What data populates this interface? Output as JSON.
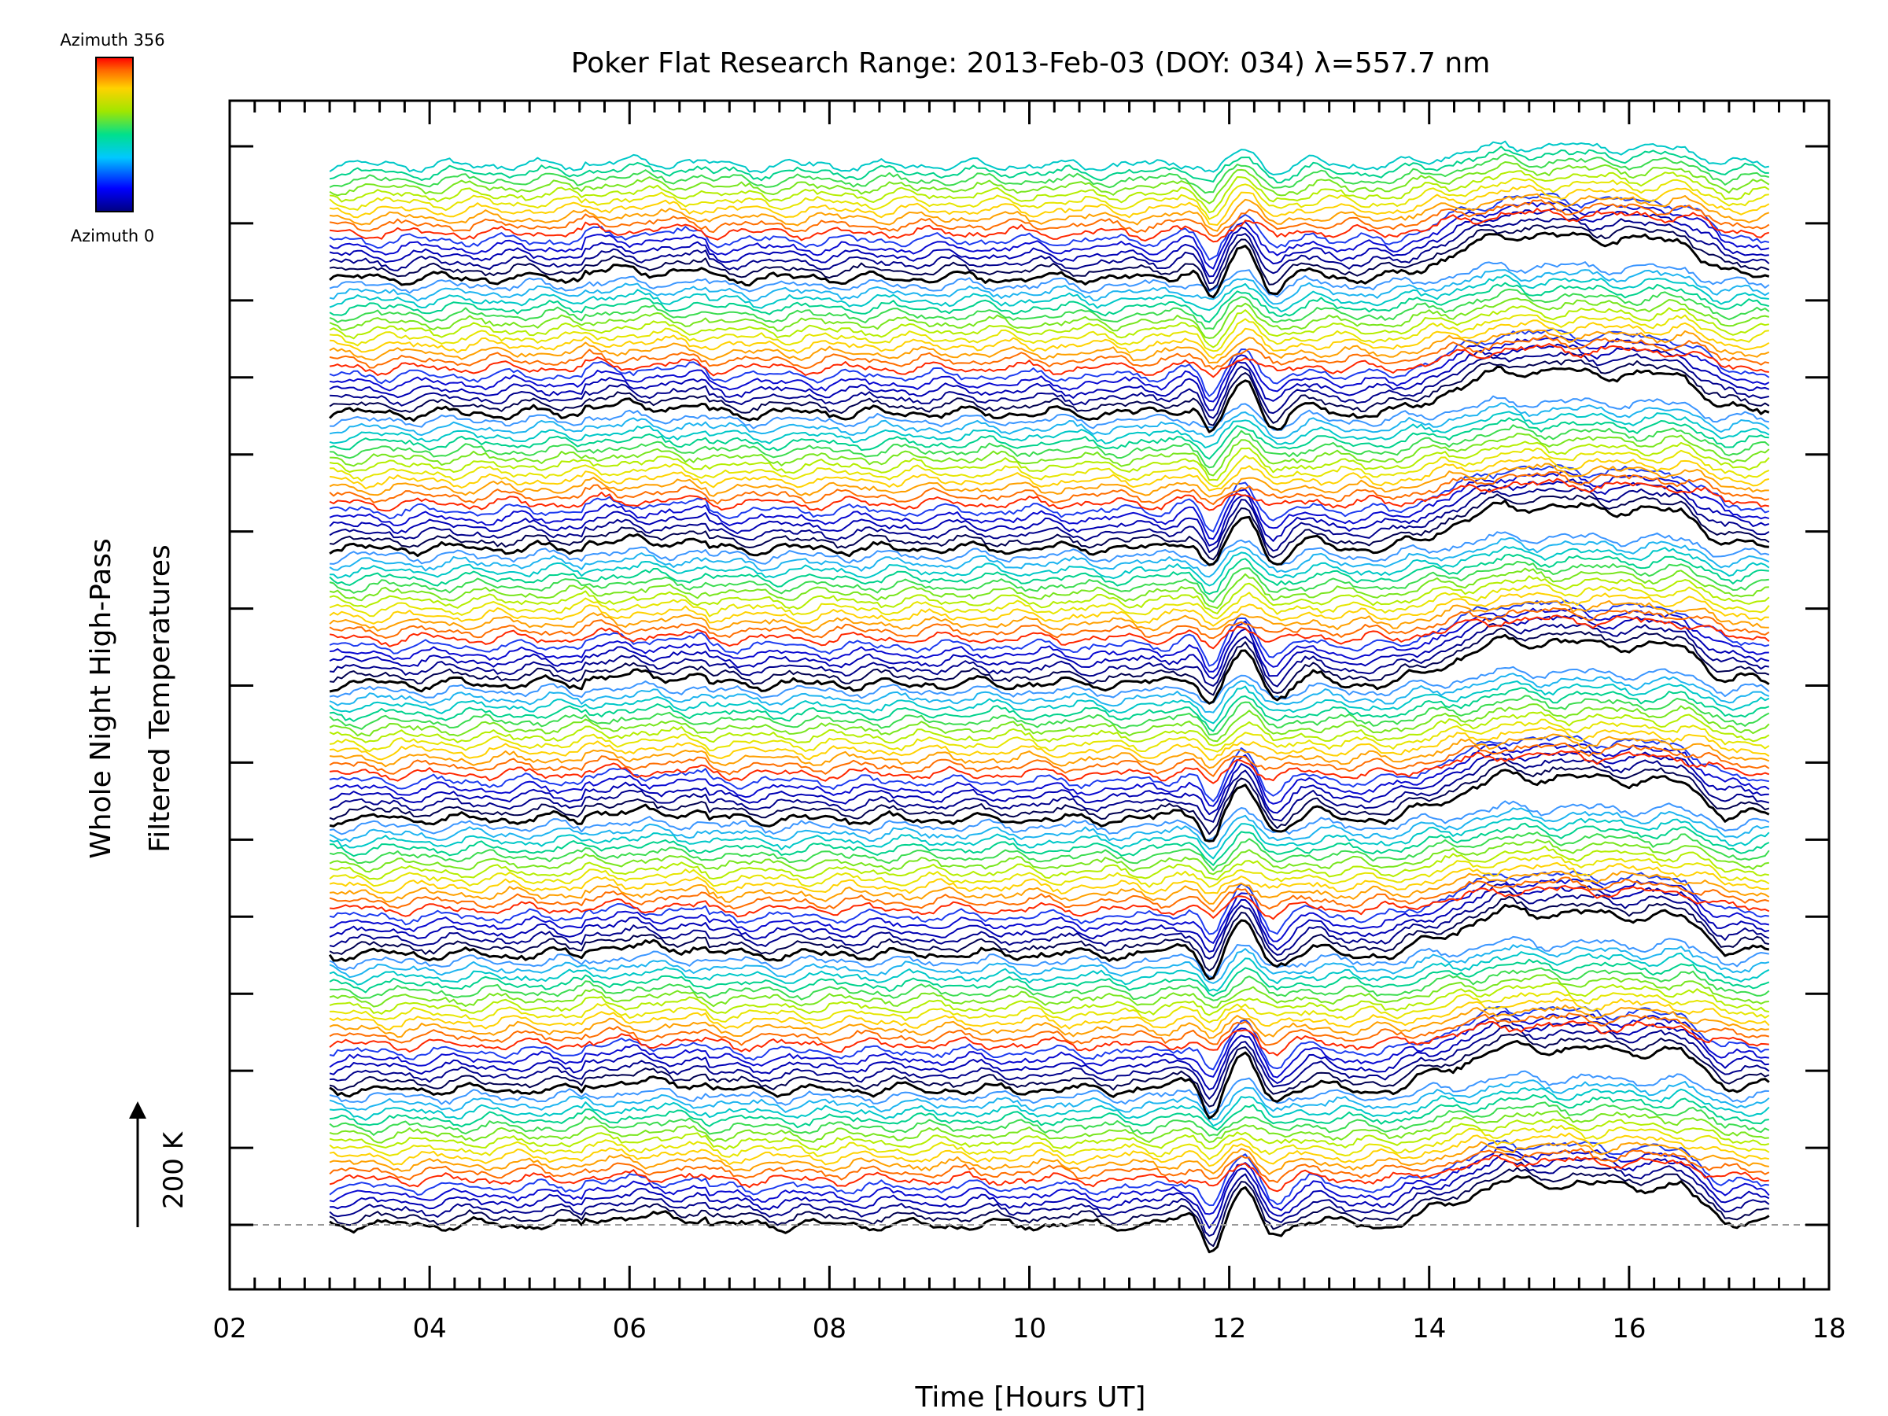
{
  "chart_data": {
    "type": "line",
    "title": "Poker Flat Research Range: 2013-Feb-03 (DOY: 034) λ=557.7 nm",
    "xlabel": "Time [Hours UT]",
    "ylabel_line1": "Whole Night High-Pass",
    "ylabel_line2": "Filtered Temperatures",
    "xlim": [
      2,
      18
    ],
    "x_ticks": [
      "02",
      "04",
      "06",
      "08",
      "10",
      "12",
      "14",
      "16",
      "18"
    ],
    "x_tick_values": [
      2,
      4,
      6,
      8,
      10,
      12,
      14,
      16,
      18
    ],
    "x_minor_step": 0.25,
    "y_major_tick_count": 15,
    "scale_bar_label": "200 K",
    "colorbar": {
      "top_label": "Azimuth 356",
      "bottom_label": "Azimuth 0",
      "colors": [
        "#0000c8",
        "#0064ff",
        "#00c8c8",
        "#00dc64",
        "#96e600",
        "#e6dc00",
        "#ff8c00",
        "#ff1e00"
      ]
    },
    "series_count": 142,
    "baseline_zero_line": "dashed",
    "time_start": 3.0,
    "time_end": 17.4,
    "event_features": [
      {
        "name": "dip",
        "time": 11.8,
        "amplitude": -1.0
      },
      {
        "name": "peak",
        "time": 12.15,
        "amplitude": 1.2
      },
      {
        "name": "ramp_up",
        "time_start": 13.7,
        "time_end": 14.75
      },
      {
        "name": "drop",
        "time": 16.55
      }
    ]
  }
}
